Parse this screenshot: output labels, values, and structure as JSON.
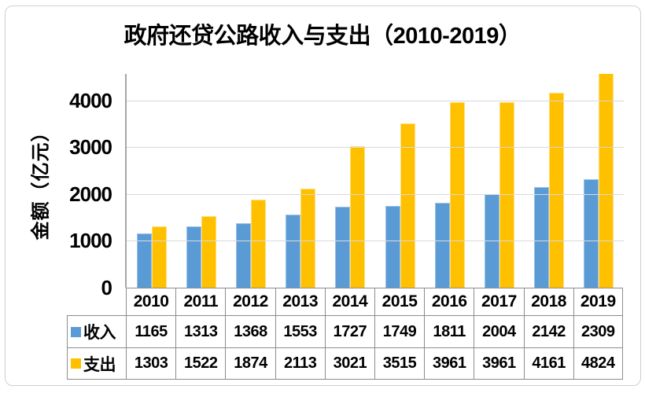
{
  "title": "政府还贷公路收入与支出（2010-2019）",
  "y_axis": {
    "label": "金额（亿元）",
    "ticks": [
      0,
      1000,
      2000,
      3000,
      4000
    ]
  },
  "chart_data": {
    "type": "bar",
    "title": "政府还贷公路收入与支出（2010-2019）",
    "categories": [
      "2010",
      "2011",
      "2012",
      "2013",
      "2014",
      "2015",
      "2016",
      "2017",
      "2018",
      "2019"
    ],
    "series": [
      {
        "name": "收入",
        "color": "#5B9BD5",
        "edge_color": "#9CC3E5",
        "values": [
          1165,
          1313,
          1368,
          1553,
          1727,
          1749,
          1811,
          2004,
          2142,
          2309
        ]
      },
      {
        "name": "支出",
        "color": "#FFC000",
        "edge_color": "#FFDE7A",
        "values": [
          1303,
          1522,
          1874,
          2113,
          3021,
          3515,
          3961,
          3961,
          4161,
          4824
        ]
      }
    ],
    "xlabel": "",
    "ylabel": "金额（亿元）",
    "ylim": [
      0,
      4564
    ],
    "grid": true,
    "legend_position": "table-left"
  },
  "colors": {
    "income_blue": "#5B9BD5",
    "expense_gold": "#FFC000",
    "gridline": "#D9D9D9",
    "table_border": "#8C8C8C",
    "axis_line": "#A6A6A6",
    "card_border": "#D0D0D0",
    "background": "#FFFFFF",
    "text": "#000000"
  }
}
